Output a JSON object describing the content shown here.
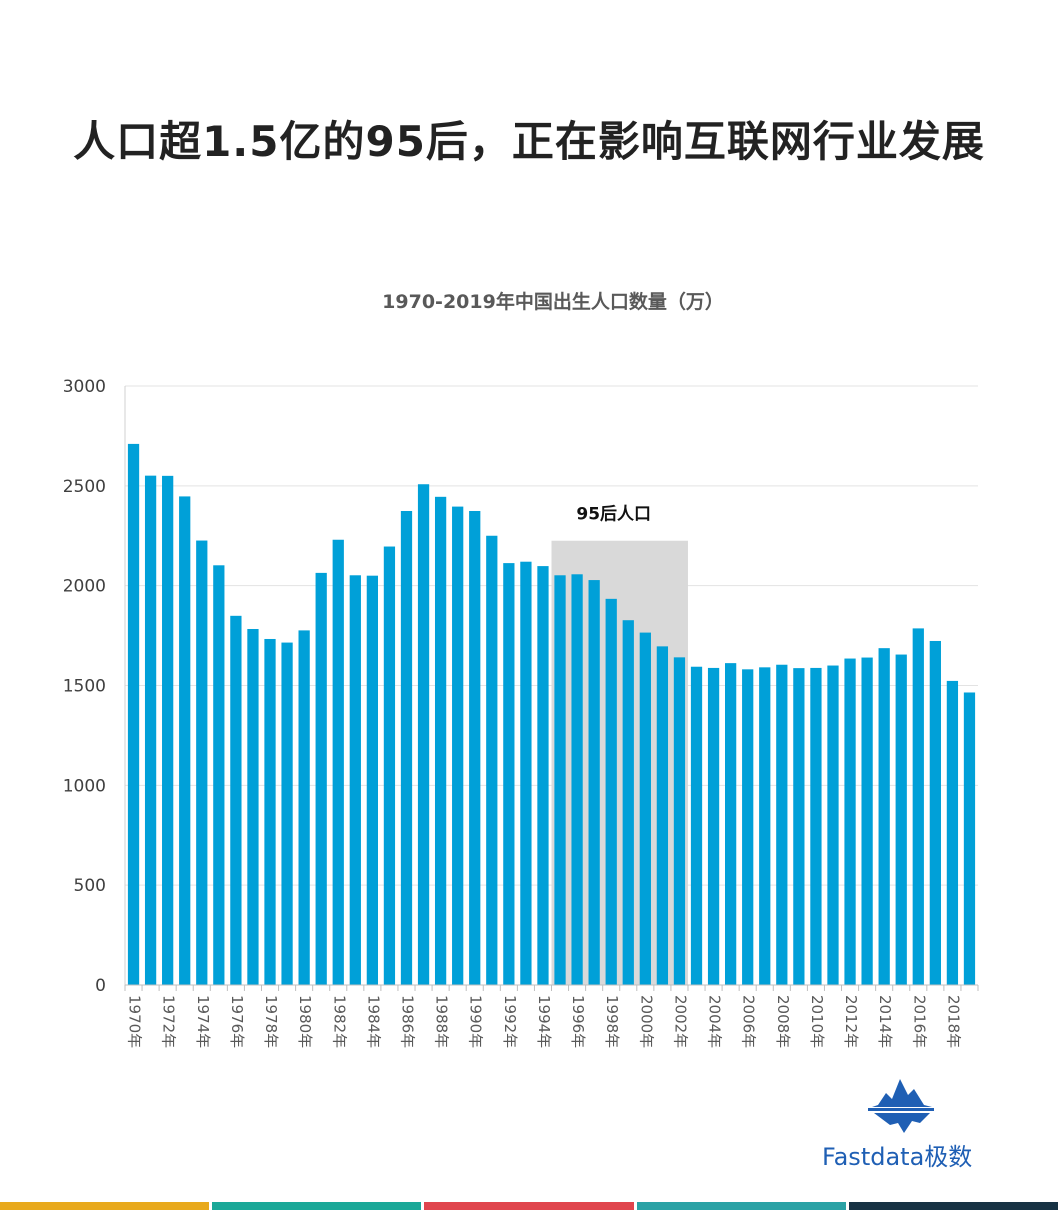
{
  "headline": "人口超1.5亿的95后，正在影响互联网行业发展",
  "chart_data": {
    "type": "bar",
    "title": "1970-2019年中国出生人口数量（万）",
    "xlabel": "",
    "ylabel": "",
    "ylim": [
      0,
      3000
    ],
    "yticks": [
      0,
      500,
      1000,
      1500,
      2000,
      2500,
      3000
    ],
    "grid": true,
    "categories": [
      "1970年",
      "1971年",
      "1972年",
      "1973年",
      "1974年",
      "1975年",
      "1976年",
      "1977年",
      "1978年",
      "1979年",
      "1980年",
      "1981年",
      "1982年",
      "1983年",
      "1984年",
      "1985年",
      "1986年",
      "1987年",
      "1988年",
      "1989年",
      "1990年",
      "1991年",
      "1992年",
      "1993年",
      "1994年",
      "1995年",
      "1996年",
      "1997年",
      "1998年",
      "1999年",
      "2000年",
      "2001年",
      "2002年",
      "2003年",
      "2004年",
      "2005年",
      "2006年",
      "2007年",
      "2008年",
      "2009年",
      "2010年",
      "2011年",
      "2012年",
      "2013年",
      "2014年",
      "2015年",
      "2016年",
      "2017年",
      "2018年",
      "2019年"
    ],
    "tick_labels": [
      "1970年",
      "1972年",
      "1974年",
      "1976年",
      "1978年",
      "1980年",
      "1982年",
      "1984年",
      "1986年",
      "1988年",
      "1990年",
      "1992年",
      "1994年",
      "1996年",
      "1998年",
      "2000年",
      "2002年",
      "2004年",
      "2006年",
      "2008年",
      "2010年",
      "2012年",
      "2014年",
      "2016年",
      "2018年"
    ],
    "values": [
      2710,
      2551,
      2550,
      2447,
      2226,
      2102,
      1849,
      1783,
      1733,
      1715,
      1776,
      2064,
      2230,
      2052,
      2050,
      2196,
      2374,
      2508,
      2445,
      2396,
      2374,
      2250,
      2113,
      2120,
      2098,
      2052,
      2057,
      2028,
      1934,
      1827,
      1765,
      1696,
      1641,
      1594,
      1588,
      1612,
      1581,
      1591,
      1604,
      1587,
      1588,
      1600,
      1635,
      1640,
      1687,
      1655,
      1786,
      1723,
      1523,
      1465
    ],
    "bar_color": "#00a0d8",
    "highlight": {
      "label": "95后人口",
      "from": "1995年",
      "to": "2002年",
      "top_value": 2225,
      "color": "#d9d9d9"
    }
  },
  "brand": {
    "name": "Fastdata极数",
    "logo_icon": "iceberg-icon",
    "color": "#1f5fb4"
  },
  "footer_colors": [
    "#e8a91c",
    "#1aa898",
    "#e0454d",
    "#2aa2a5",
    "#173244"
  ]
}
